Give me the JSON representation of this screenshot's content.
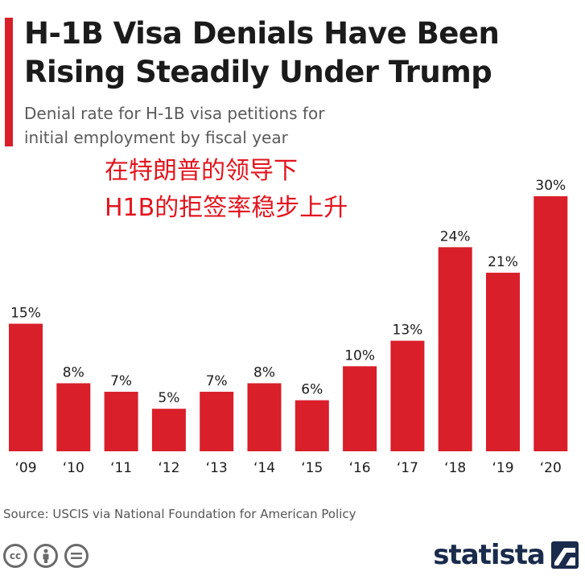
{
  "header": {
    "title_line1": "H-1B Visa Denials Have Been",
    "title_line2": "Rising Steadily Under Trump",
    "subtitle_line1": "Denial rate for H-1B visa petitions for",
    "subtitle_line2": "initial employment by fiscal year"
  },
  "annotation": {
    "line1": "在特朗普的领导下",
    "line2": "H1B的拒签率稳步上升"
  },
  "colors": {
    "bar": "#d81f2a",
    "accent": "#d81f2a",
    "annotation": "#e3141e",
    "brand": "#1a2b4c"
  },
  "chart_data": {
    "type": "bar",
    "title": "H-1B Visa Denials Have Been Rising Steadily Under Trump",
    "subtitle": "Denial rate for H-1B visa petitions for initial employment by fiscal year",
    "categories": [
      "‘09",
      "‘10",
      "‘11",
      "‘12",
      "‘13",
      "‘14",
      "‘15",
      "‘16",
      "‘17",
      "‘18",
      "‘19",
      "‘20"
    ],
    "values": [
      15,
      8,
      7,
      5,
      7,
      8,
      6,
      10,
      13,
      24,
      21,
      30
    ],
    "value_labels": [
      "15%",
      "8%",
      "7%",
      "5%",
      "7%",
      "8%",
      "6%",
      "10%",
      "13%",
      "24%",
      "21%",
      "30%"
    ],
    "xlabel": "",
    "ylabel": "",
    "ylim": [
      0,
      30
    ],
    "grid": false,
    "legend": "none"
  },
  "footer": {
    "source": "Source: USCIS via National Foundation for American Policy",
    "brand": "statista",
    "license_icons": [
      "cc-icon",
      "attribution-icon",
      "no-derivatives-icon"
    ]
  }
}
